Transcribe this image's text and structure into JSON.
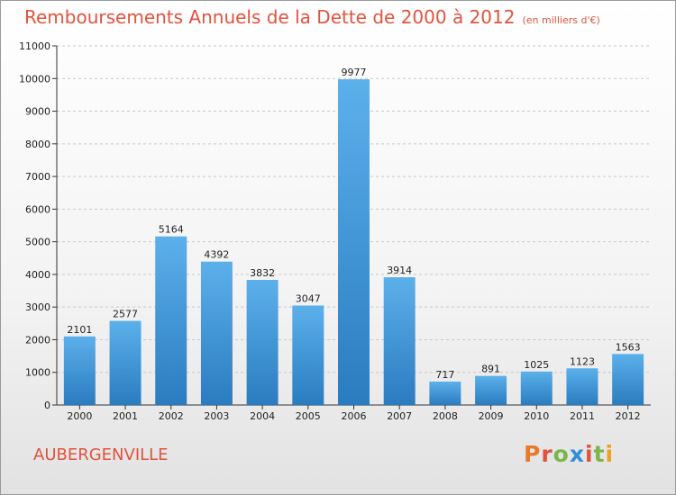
{
  "chart_data": {
    "type": "bar",
    "title": "Remboursements Annuels de la Dette de 2000 à 2012",
    "subtitle": "(en milliers d'€)",
    "categories": [
      "2000",
      "2001",
      "2002",
      "2003",
      "2004",
      "2005",
      "2006",
      "2007",
      "2008",
      "2009",
      "2010",
      "2011",
      "2012"
    ],
    "values": [
      2101,
      2577,
      5164,
      4392,
      3832,
      3047,
      9977,
      3914,
      717,
      891,
      1025,
      1123,
      1563
    ],
    "ylim": [
      0,
      11000
    ],
    "yticks": [
      0,
      1000,
      2000,
      3000,
      4000,
      5000,
      6000,
      7000,
      8000,
      9000,
      10000,
      11000
    ],
    "grid": true,
    "bar_color": "#4a9fde"
  },
  "commune": "AUBERGENVILLE",
  "logo": {
    "text": "Proxiti",
    "letters": [
      {
        "c": "P",
        "color": "#e87a2a"
      },
      {
        "c": "r",
        "color": "#e0533e"
      },
      {
        "c": "o",
        "color": "#7ab648"
      },
      {
        "c": "x",
        "color": "#2f8fd8"
      },
      {
        "c": "i",
        "color": "#e0533e"
      },
      {
        "c": "t",
        "color": "#7ab648"
      },
      {
        "c": "i",
        "color": "#e8a22a"
      }
    ]
  }
}
